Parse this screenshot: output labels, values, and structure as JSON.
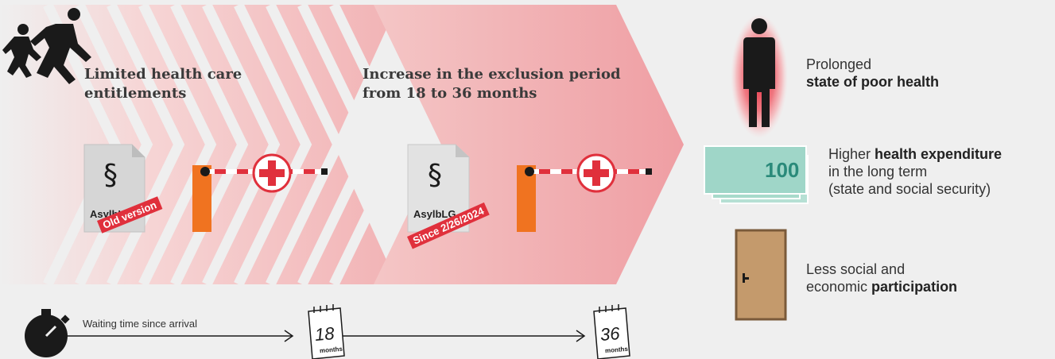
{
  "colors": {
    "background": "#efefef",
    "arrow_pink": "#f0a0a4",
    "accent_red": "#e0303c",
    "barrier_orange": "#f07320",
    "money_green": "#9fd6c8",
    "door_brown": "#c49a6c"
  },
  "icons": [
    "running-people-icon",
    "paragraph-document-icon",
    "barrier-icon",
    "red-cross-icon",
    "stopwatch-icon",
    "calendar-icon",
    "person-icon",
    "banknotes-icon",
    "door-icon"
  ],
  "phase1": {
    "heading_line1": "Limited health care",
    "heading_line2": "entitlements",
    "doc_symbol": "§",
    "doc_label": "AsylbLG",
    "stamp": "Old version"
  },
  "phase2": {
    "heading_line1": "Increase in the exclusion period",
    "heading_line2": "from 18 to 36 months",
    "doc_symbol": "§",
    "doc_label": "AsylbLG",
    "stamp": "Since 2/26/2024"
  },
  "timeline": {
    "label": "Waiting time since arrival",
    "calendar1_number": "18",
    "calendar1_unit": "months",
    "calendar2_number": "36",
    "calendar2_unit": "months"
  },
  "outcomes": [
    {
      "line1": "Prolonged",
      "line2_bold": "state of poor health"
    },
    {
      "line1_plain": "Higher ",
      "line1_bold": "health expenditure",
      "line2": "in the long term",
      "line3": "(state and social security)",
      "banknote_value": "100"
    },
    {
      "line1": "Less social and",
      "line2_plain": "economic ",
      "line2_bold": "participation"
    }
  ]
}
